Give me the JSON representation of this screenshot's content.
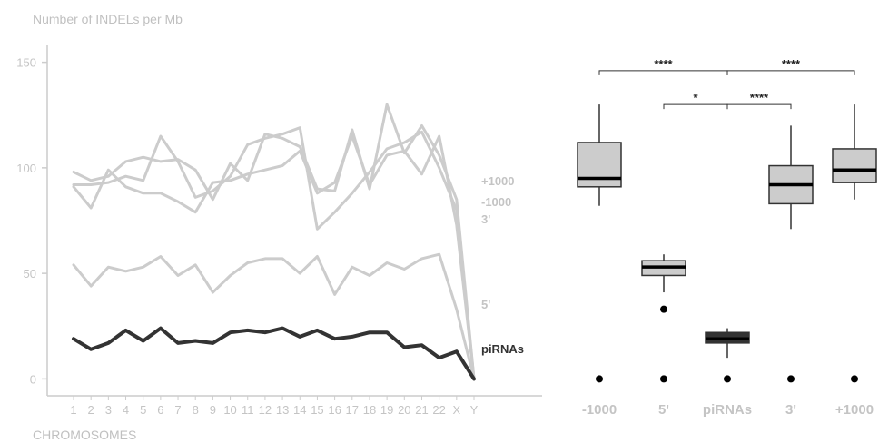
{
  "chart_data": [
    {
      "type": "line",
      "title": "",
      "ylabel": "Number of INDELs per Mb",
      "xlabel": "CHROMOSOMES",
      "ylim": [
        -8,
        158
      ],
      "yticks": [
        0,
        50,
        100,
        150
      ],
      "grid": false,
      "colors": {
        "gray": "#cccccc",
        "dark": "#333333"
      },
      "categories": [
        "1",
        "2",
        "3",
        "4",
        "5",
        "6",
        "7",
        "8",
        "9",
        "10",
        "11",
        "12",
        "13",
        "14",
        "15",
        "16",
        "17",
        "18",
        "19",
        "20",
        "21",
        "22",
        "X",
        "Y"
      ],
      "series": [
        {
          "name": "+1000",
          "color": "#cccccc",
          "values": [
            98,
            94,
            96,
            103,
            105,
            103,
            104,
            99,
            85,
            102,
            94,
            116,
            114,
            110,
            90,
            89,
            118,
            90,
            130,
            107,
            120,
            106,
            85,
            0
          ]
        },
        {
          "name": "-1000",
          "color": "#cccccc",
          "values": [
            91,
            81,
            99,
            91,
            88,
            88,
            84,
            79,
            93,
            94,
            97,
            99,
            101,
            108,
            88,
            93,
            115,
            92,
            106,
            108,
            97,
            115,
            73,
            0
          ]
        },
        {
          "name": "3'",
          "color": "#cccccc",
          "values": [
            92,
            92,
            93,
            96,
            94,
            115,
            103,
            86,
            89,
            96,
            111,
            114,
            116,
            119,
            71,
            79,
            88,
            98,
            109,
            112,
            117,
            100,
            80,
            0
          ]
        },
        {
          "name": "5'",
          "color": "#cccccc",
          "values": [
            54,
            44,
            53,
            51,
            53,
            58,
            49,
            54,
            41,
            49,
            55,
            57,
            57,
            50,
            58,
            40,
            53,
            49,
            55,
            52,
            57,
            59,
            33,
            0
          ]
        },
        {
          "name": "piRNAs",
          "color": "#333333",
          "values": [
            19,
            14,
            17,
            23,
            18,
            24,
            17,
            18,
            17,
            22,
            23,
            22,
            24,
            20,
            23,
            19,
            20,
            22,
            22,
            15,
            16,
            10,
            13,
            0
          ]
        }
      ]
    },
    {
      "type": "box",
      "ylim": [
        -8,
        158
      ],
      "categories": [
        "-1000",
        "5'",
        "piRNAs",
        "3'",
        "+1000"
      ],
      "boxes": [
        {
          "label": "-1000",
          "fill": "#cccccc",
          "whisker_low": 82,
          "q1": 91,
          "median": 95,
          "q3": 112,
          "whisker_high": 130,
          "outliers": [
            0
          ]
        },
        {
          "label": "5'",
          "fill": "#cccccc",
          "whisker_low": 41,
          "q1": 49,
          "median": 53,
          "q3": 56,
          "whisker_high": 59,
          "outliers": [
            0,
            33
          ]
        },
        {
          "label": "piRNAs",
          "fill": "#333333",
          "whisker_low": 10,
          "q1": 17,
          "median": 19,
          "q3": 22,
          "whisker_high": 24,
          "outliers": [
            0
          ]
        },
        {
          "label": "3'",
          "fill": "#cccccc",
          "whisker_low": 71,
          "q1": 83,
          "median": 92,
          "q3": 101,
          "whisker_high": 120,
          "outliers": [
            0
          ]
        },
        {
          "label": "+1000",
          "fill": "#cccccc",
          "whisker_low": 85,
          "q1": 93,
          "median": 99,
          "q3": 109,
          "whisker_high": 130,
          "outliers": [
            0
          ]
        }
      ],
      "comparisons": [
        {
          "from": "-1000",
          "to": "piRNAs",
          "y": 146,
          "label": "****"
        },
        {
          "from": "piRNAs",
          "to": "+1000",
          "y": 146,
          "label": "****"
        },
        {
          "from": "5'",
          "to": "piRNAs",
          "y": 130,
          "label": "*"
        },
        {
          "from": "piRNAs",
          "to": "3'",
          "y": 130,
          "label": "****"
        }
      ]
    }
  ]
}
